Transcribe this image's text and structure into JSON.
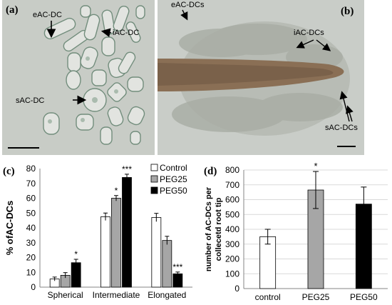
{
  "panel_a": {
    "label": "(a)",
    "annotations": {
      "eac": "eAC-DC",
      "iac": "iAC-DC",
      "sac": "sAC-DC"
    }
  },
  "panel_b": {
    "label": "(b)",
    "annotations": {
      "eac": "eAC-DCs",
      "iac": "iAC-DCs",
      "sac": "sAC-DCs"
    }
  },
  "panel_c_label": "(c)",
  "panel_d_label": "(d)",
  "colors": {
    "white": "#ffffff",
    "gray": "#a6a6a6",
    "black": "#000000",
    "axis": "#868686",
    "grid": "#d9d9d9",
    "photo_bg": "#c9cdc8"
  },
  "chart_data": [
    {
      "type": "bar",
      "categories": [
        "Spherical",
        "Intermediate",
        "Elongated"
      ],
      "series": [
        {
          "name": "Control",
          "values": [
            5.5,
            47.5,
            47
          ],
          "errors": [
            1.3,
            2.5,
            2.8
          ],
          "sig": [
            "",
            "",
            ""
          ]
        },
        {
          "name": "PEG25",
          "values": [
            8,
            60,
            31.5
          ],
          "errors": [
            1.8,
            1.8,
            2.8
          ],
          "sig": [
            "",
            "*",
            ""
          ]
        },
        {
          "name": "PEG50",
          "values": [
            16.5,
            74,
            9
          ],
          "errors": [
            2.3,
            2.2,
            1.2
          ],
          "sig": [
            "*",
            "***",
            "***"
          ]
        }
      ],
      "ylabel": "% ofAC-DCs",
      "ylim": [
        0,
        80
      ],
      "yticks": [
        "0",
        "10",
        "20",
        "30",
        "40",
        "50",
        "60",
        "70",
        "80"
      ],
      "legend_position": "top-right",
      "grid": false
    },
    {
      "type": "bar",
      "categories": [
        "control",
        "PEG25",
        "PEG50"
      ],
      "values": [
        350,
        665,
        570
      ],
      "errors": [
        50,
        125,
        115
      ],
      "sig": [
        "",
        "*",
        ""
      ],
      "ylabel_lines": [
        "number of AC-DCs per",
        "collecetd root tip"
      ],
      "ylim": [
        0,
        800
      ],
      "yticks": [
        "0",
        "100",
        "200",
        "300",
        "400",
        "500",
        "600",
        "700",
        "800"
      ],
      "grid": true
    }
  ]
}
